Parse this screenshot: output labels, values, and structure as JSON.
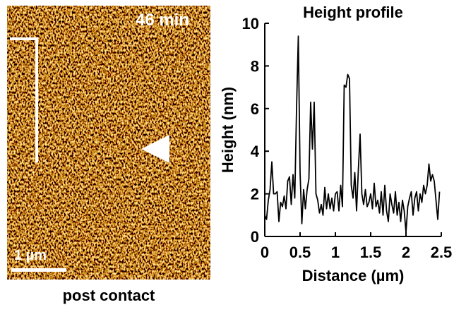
{
  "image": {
    "time_label": "46 min",
    "scale_label": "1 µm",
    "caption": "post contact"
  },
  "chart_data": {
    "type": "line",
    "title": "Height profile",
    "xlabel": "Distance (µm)",
    "ylabel": "Height (nm)",
    "color": "#000000",
    "xlim": [
      0,
      2.5
    ],
    "ylim": [
      0,
      10
    ],
    "xticks": [
      0,
      0.5,
      1,
      1.5,
      2,
      2.5
    ],
    "yticks": [
      0,
      2,
      4,
      6,
      8,
      10
    ],
    "x": [
      0,
      0.025,
      0.05,
      0.075,
      0.1,
      0.125,
      0.15,
      0.175,
      0.2,
      0.225,
      0.25,
      0.275,
      0.3,
      0.325,
      0.35,
      0.375,
      0.4,
      0.425,
      0.45,
      0.475,
      0.5,
      0.525,
      0.55,
      0.575,
      0.6,
      0.625,
      0.65,
      0.675,
      0.7,
      0.725,
      0.75,
      0.775,
      0.8,
      0.825,
      0.85,
      0.875,
      0.9,
      0.925,
      0.95,
      0.975,
      1.0,
      1.025,
      1.05,
      1.075,
      1.1,
      1.125,
      1.15,
      1.175,
      1.2,
      1.225,
      1.25,
      1.275,
      1.3,
      1.325,
      1.35,
      1.375,
      1.4,
      1.425,
      1.45,
      1.475,
      1.5,
      1.525,
      1.55,
      1.575,
      1.6,
      1.625,
      1.65,
      1.675,
      1.7,
      1.725,
      1.75,
      1.775,
      1.8,
      1.825,
      1.85,
      1.875,
      1.9,
      1.925,
      1.95,
      1.975,
      2.0,
      2.025,
      2.05,
      2.075,
      2.1,
      2.125,
      2.15,
      2.175,
      2.2,
      2.225,
      2.25,
      2.275,
      2.3,
      2.325,
      2.35,
      2.375,
      2.4,
      2.425,
      2.45,
      2.475
    ],
    "values": [
      1.0,
      0.8,
      1.7,
      2.2,
      3.5,
      2.0,
      2.0,
      2.1,
      0.7,
      1.6,
      1.4,
      1.9,
      1.3,
      2.6,
      2.8,
      1.5,
      2.9,
      1.8,
      6.0,
      9.4,
      3.0,
      0.6,
      2.2,
      1.3,
      2.2,
      2.7,
      6.3,
      4.1,
      6.3,
      2.0,
      1.7,
      1.1,
      1.5,
      1.0,
      2.3,
      1.3,
      2.0,
      1.3,
      1.8,
      1.2,
      2.0,
      2.1,
      1.2,
      2.4,
      1.4,
      7.1,
      7.0,
      7.6,
      7.4,
      2.4,
      1.8,
      3.0,
      1.2,
      3.1,
      4.8,
      2.0,
      1.5,
      2.2,
      1.4,
      1.6,
      2.0,
      1.3,
      2.5,
      1.4,
      1.7,
      1.1,
      2.1,
      1.0,
      2.4,
      1.2,
      0.7,
      2.0,
      1.5,
      1.1,
      2.1,
      1.0,
      1.6,
      0.7,
      1.7,
      1.2,
      0.2,
      1.4,
      1.8,
      2.1,
      1.0,
      1.8,
      2.1,
      1.2,
      2.0,
      1.6,
      2.4,
      2.0,
      2.4,
      3.4,
      2.6,
      2.9,
      2.6,
      1.7,
      0.8,
      2.1
    ]
  }
}
